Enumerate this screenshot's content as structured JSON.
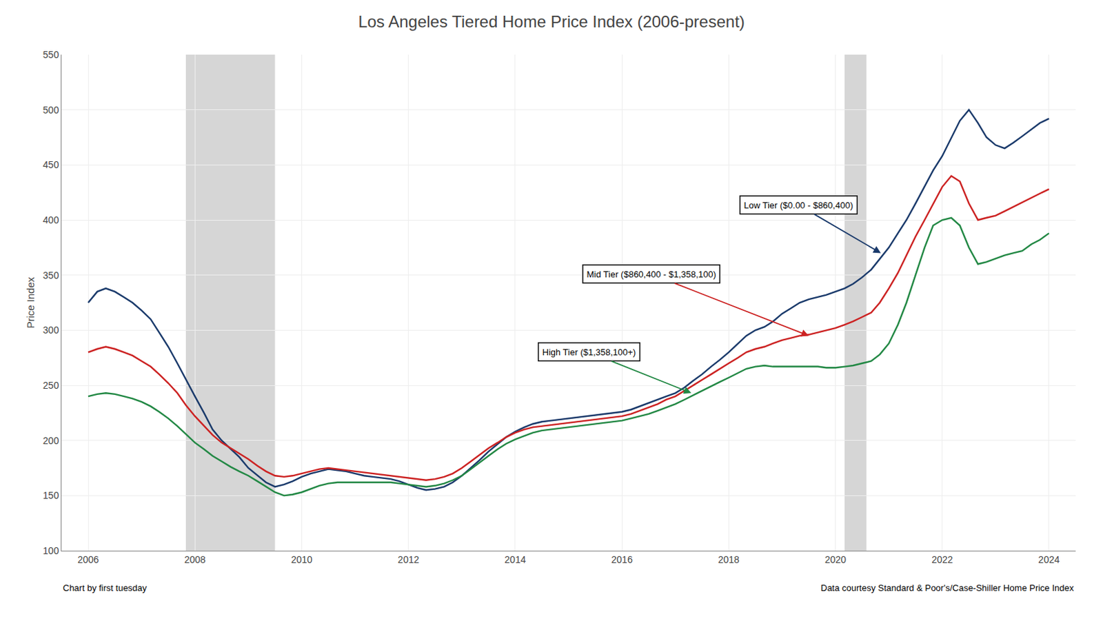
{
  "chart_data": {
    "type": "line",
    "title": "Los Angeles Tiered Home Price Index (2006-present)",
    "ylabel": "Price Index",
    "ylim": [
      100,
      550
    ],
    "yticks": [
      100,
      150,
      200,
      250,
      300,
      350,
      400,
      450,
      500,
      550
    ],
    "xlim": [
      2005.5,
      2024.5
    ],
    "xticks": [
      2006,
      2008,
      2010,
      2012,
      2014,
      2016,
      2018,
      2020,
      2022,
      2024
    ],
    "grid": true,
    "spans": [
      {
        "start": 2007.83,
        "end": 2009.5,
        "color": "#c8c8c8"
      },
      {
        "start": 2020.17,
        "end": 2020.58,
        "color": "#c8c8c8"
      }
    ],
    "x": [
      2006.0,
      2006.17,
      2006.33,
      2006.5,
      2006.67,
      2006.83,
      2007.0,
      2007.17,
      2007.33,
      2007.5,
      2007.67,
      2007.83,
      2008.0,
      2008.17,
      2008.33,
      2008.5,
      2008.67,
      2008.83,
      2009.0,
      2009.17,
      2009.33,
      2009.5,
      2009.67,
      2009.83,
      2010.0,
      2010.17,
      2010.33,
      2010.5,
      2010.67,
      2010.83,
      2011.0,
      2011.17,
      2011.33,
      2011.5,
      2011.67,
      2011.83,
      2012.0,
      2012.17,
      2012.33,
      2012.5,
      2012.67,
      2012.83,
      2013.0,
      2013.17,
      2013.33,
      2013.5,
      2013.67,
      2013.83,
      2014.0,
      2014.17,
      2014.33,
      2014.5,
      2014.67,
      2014.83,
      2015.0,
      2015.17,
      2015.33,
      2015.5,
      2015.67,
      2015.83,
      2016.0,
      2016.17,
      2016.33,
      2016.5,
      2016.67,
      2016.83,
      2017.0,
      2017.17,
      2017.33,
      2017.5,
      2017.67,
      2017.83,
      2018.0,
      2018.17,
      2018.33,
      2018.5,
      2018.67,
      2018.83,
      2019.0,
      2019.17,
      2019.33,
      2019.5,
      2019.67,
      2019.83,
      2020.0,
      2020.17,
      2020.33,
      2020.5,
      2020.67,
      2020.83,
      2021.0,
      2021.17,
      2021.33,
      2021.5,
      2021.67,
      2021.83,
      2022.0,
      2022.17,
      2022.33,
      2022.5,
      2022.67,
      2022.83,
      2023.0,
      2023.17,
      2023.33,
      2023.5,
      2023.67,
      2023.83,
      2024.0
    ],
    "series": [
      {
        "color": "#1a3a6b",
        "values": [
          325,
          335,
          338,
          335,
          330,
          325,
          318,
          310,
          298,
          285,
          270,
          255,
          240,
          225,
          210,
          200,
          192,
          185,
          175,
          168,
          162,
          158,
          160,
          163,
          167,
          170,
          172,
          174,
          173,
          172,
          170,
          168,
          167,
          166,
          165,
          163,
          160,
          157,
          155,
          156,
          158,
          162,
          168,
          175,
          182,
          190,
          197,
          203,
          208,
          212,
          215,
          217,
          218,
          219,
          220,
          221,
          222,
          223,
          224,
          225,
          226,
          228,
          231,
          234,
          237,
          240,
          243,
          248,
          254,
          260,
          267,
          273,
          280,
          288,
          295,
          300,
          303,
          308,
          315,
          320,
          325,
          328,
          330,
          332,
          335,
          338,
          342,
          348,
          355,
          365,
          375,
          388,
          400,
          415,
          430,
          445,
          458,
          475,
          490,
          500,
          488,
          475,
          468,
          465,
          470,
          476,
          482,
          488,
          492
        ]
      },
      {
        "color": "#cc2222",
        "values": [
          280,
          283,
          285,
          283,
          280,
          277,
          272,
          267,
          260,
          252,
          243,
          232,
          222,
          213,
          205,
          198,
          193,
          188,
          183,
          177,
          172,
          168,
          167,
          168,
          170,
          172,
          174,
          175,
          174,
          173,
          172,
          171,
          170,
          169,
          168,
          167,
          166,
          165,
          164,
          165,
          167,
          170,
          175,
          181,
          187,
          193,
          198,
          203,
          207,
          210,
          212,
          213,
          214,
          215,
          216,
          217,
          218,
          219,
          220,
          221,
          222,
          224,
          227,
          230,
          233,
          237,
          240,
          245,
          250,
          255,
          260,
          265,
          270,
          275,
          280,
          283,
          285,
          288,
          291,
          293,
          295,
          296,
          298,
          300,
          302,
          305,
          308,
          312,
          316,
          325,
          338,
          352,
          368,
          385,
          400,
          415,
          430,
          440,
          435,
          415,
          400,
          402,
          404,
          408,
          412,
          416,
          420,
          424,
          428
        ]
      },
      {
        "color": "#228844",
        "values": [
          240,
          242,
          243,
          242,
          240,
          238,
          235,
          231,
          226,
          220,
          213,
          206,
          198,
          192,
          186,
          181,
          176,
          172,
          168,
          163,
          158,
          153,
          150,
          151,
          153,
          156,
          159,
          161,
          162,
          162,
          162,
          162,
          162,
          162,
          162,
          161,
          160,
          159,
          158,
          159,
          161,
          164,
          168,
          174,
          180,
          186,
          192,
          197,
          201,
          204,
          207,
          209,
          210,
          211,
          212,
          213,
          214,
          215,
          216,
          217,
          218,
          220,
          222,
          224,
          227,
          230,
          233,
          237,
          241,
          245,
          249,
          253,
          257,
          261,
          265,
          267,
          268,
          267,
          267,
          267,
          267,
          267,
          267,
          266,
          266,
          267,
          268,
          270,
          272,
          278,
          288,
          305,
          325,
          350,
          375,
          395,
          400,
          402,
          395,
          375,
          360,
          362,
          365,
          368,
          370,
          372,
          378,
          382,
          388
        ]
      }
    ],
    "annotations": [
      {
        "text": "Low Tier ($0.00 - $860,400)",
        "x": 2020.85,
        "y": 370
      },
      {
        "text": "Mid Tier ($860,400 - $1,358,100)",
        "x": 2019.5,
        "y": 295
      },
      {
        "text": "High Tier ($1,358,100+)",
        "x": 2017.3,
        "y": 243
      }
    ],
    "credit": "Chart by first tuesday",
    "source": "Data courtesy Standard & Poor's/Case-Shiller Home Price Index"
  }
}
